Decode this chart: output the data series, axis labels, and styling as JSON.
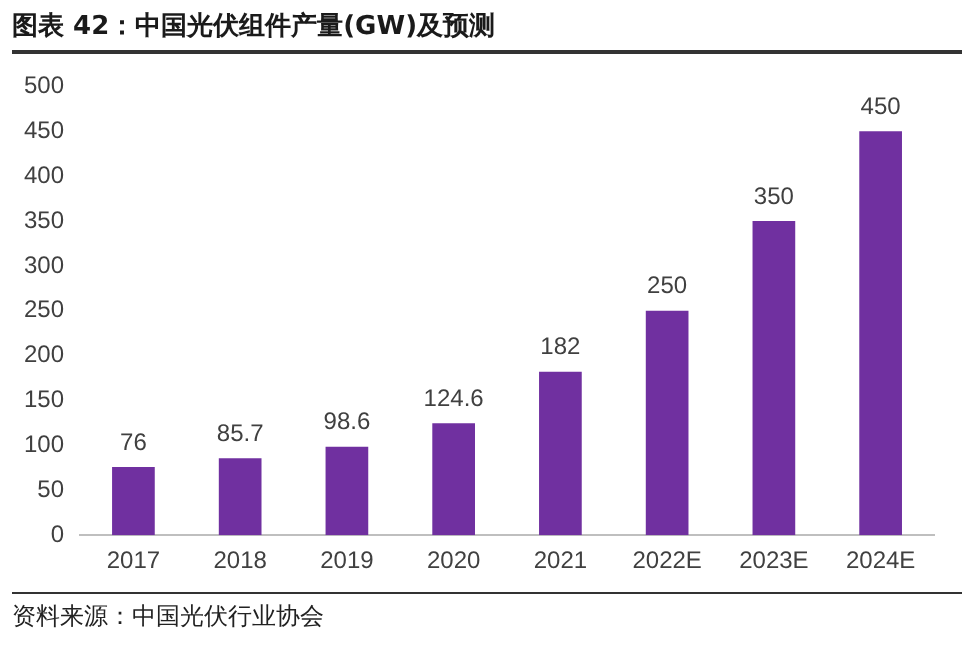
{
  "chart_data": {
    "type": "bar",
    "title": "图表 42：中国光伏组件产量(GW)及预测",
    "categories": [
      "2017",
      "2018",
      "2019",
      "2020",
      "2021",
      "2022E",
      "2023E",
      "2024E"
    ],
    "values": [
      76,
      85.7,
      98.6,
      124.6,
      182,
      250,
      350,
      450
    ],
    "color": "#7030a0",
    "ylim": [
      0,
      500
    ],
    "yticks": [
      0,
      50,
      100,
      150,
      200,
      250,
      300,
      350,
      400,
      450,
      500
    ],
    "grid": false,
    "data_labels": true,
    "annotations": [
      "资料来源：中国光伏行业协会"
    ]
  }
}
